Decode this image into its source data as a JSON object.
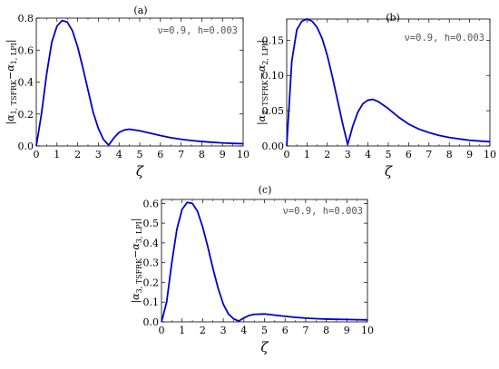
{
  "chart_data": [
    {
      "type": "line",
      "panel_label": "(a)",
      "annotation": "ν=0.9, h=0.003",
      "xlabel": "ζ",
      "ylabel": "|α1, TSFRK−α1, LPI|",
      "ylabel_parts": {
        "open": "|α",
        "sub1": "1, TSFRK",
        "mid": "−α",
        "sub2": "1, LPI",
        "close": "|"
      },
      "xlim": [
        0,
        10
      ],
      "ylim": [
        0,
        0.8
      ],
      "xticks": [
        0,
        1,
        2,
        3,
        4,
        5,
        6,
        7,
        8,
        9,
        10
      ],
      "yticks": [
        0.0,
        0.2,
        0.4,
        0.6,
        0.8
      ],
      "ytick_labels": [
        "0.0",
        "0.2",
        "0.4",
        "0.6",
        "0.8"
      ],
      "series": [
        {
          "color": "#0000cc",
          "x": [
            0,
            0.25,
            0.5,
            0.75,
            1.0,
            1.25,
            1.5,
            1.75,
            2.0,
            2.25,
            2.5,
            2.75,
            3.0,
            3.25,
            3.5,
            3.75,
            4.0,
            4.25,
            4.5,
            5.0,
            5.5,
            6.0,
            6.5,
            7.0,
            7.5,
            8.0,
            8.5,
            9.0,
            9.5,
            10.0
          ],
          "y": [
            0,
            0.2,
            0.45,
            0.65,
            0.75,
            0.785,
            0.775,
            0.72,
            0.62,
            0.49,
            0.35,
            0.21,
            0.11,
            0.04,
            0.005,
            0.05,
            0.085,
            0.1,
            0.105,
            0.095,
            0.08,
            0.065,
            0.052,
            0.042,
            0.034,
            0.028,
            0.023,
            0.019,
            0.016,
            0.014
          ]
        }
      ]
    },
    {
      "type": "line",
      "panel_label": "(b)",
      "annotation": "ν=0.9, h=0.003",
      "xlabel": "ζ",
      "ylabel": "|α2, TSFRK−α2, LPI|",
      "ylabel_parts": {
        "open": "|α",
        "sub1": "2, TSFRK",
        "mid": "−α",
        "sub2": "2, LPI",
        "close": "|"
      },
      "xlim": [
        0,
        10
      ],
      "ylim": [
        0,
        0.18
      ],
      "xticks": [
        0,
        1,
        2,
        3,
        4,
        5,
        6,
        7,
        8,
        9,
        10
      ],
      "yticks": [
        0.0,
        0.05,
        0.1,
        0.15
      ],
      "ytick_labels": [
        "0.00",
        "0.05",
        "0.10",
        "0.15"
      ],
      "series": [
        {
          "color": "#0000cc",
          "x": [
            0,
            0.25,
            0.5,
            0.75,
            1.0,
            1.25,
            1.5,
            1.75,
            2.0,
            2.25,
            2.5,
            2.75,
            3.0,
            3.25,
            3.5,
            3.75,
            4.0,
            4.25,
            4.5,
            5.0,
            5.5,
            6.0,
            6.5,
            7.0,
            7.5,
            8.0,
            8.5,
            9.0,
            9.5,
            10.0
          ],
          "y": [
            0,
            0.12,
            0.165,
            0.177,
            0.18,
            0.177,
            0.168,
            0.152,
            0.128,
            0.098,
            0.065,
            0.032,
            0.002,
            0.028,
            0.048,
            0.06,
            0.065,
            0.066,
            0.063,
            0.053,
            0.041,
            0.031,
            0.024,
            0.019,
            0.015,
            0.012,
            0.01,
            0.008,
            0.007,
            0.006
          ]
        }
      ]
    },
    {
      "type": "line",
      "panel_label": "(c)",
      "annotation": "ν=0.9, h=0.003",
      "xlabel": "ζ",
      "ylabel": "|α3, TSFRK−α3, LPI|",
      "ylabel_parts": {
        "open": "|α",
        "sub1": "3, TSFRK",
        "mid": "−α",
        "sub2": "3, LPI",
        "close": "|"
      },
      "xlim": [
        0,
        10
      ],
      "ylim": [
        0,
        0.62
      ],
      "xticks": [
        0,
        1,
        2,
        3,
        4,
        5,
        6,
        7,
        8,
        9,
        10
      ],
      "yticks": [
        0.0,
        0.1,
        0.2,
        0.3,
        0.4,
        0.5,
        0.6
      ],
      "ytick_labels": [
        "0.0",
        "0.1",
        "0.2",
        "0.3",
        "0.4",
        "0.5",
        "0.6"
      ],
      "series": [
        {
          "color": "#0000cc",
          "x": [
            0,
            0.25,
            0.5,
            0.75,
            1.0,
            1.25,
            1.5,
            1.75,
            2.0,
            2.25,
            2.5,
            2.75,
            3.0,
            3.25,
            3.5,
            3.75,
            4.0,
            4.25,
            4.5,
            5.0,
            5.5,
            6.0,
            6.5,
            7.0,
            7.5,
            8.0,
            8.5,
            9.0,
            9.5,
            10.0
          ],
          "y": [
            0,
            0.1,
            0.3,
            0.47,
            0.57,
            0.605,
            0.6,
            0.56,
            0.48,
            0.38,
            0.27,
            0.17,
            0.09,
            0.04,
            0.015,
            0.004,
            0.02,
            0.032,
            0.038,
            0.04,
            0.034,
            0.028,
            0.023,
            0.019,
            0.016,
            0.014,
            0.013,
            0.012,
            0.011,
            0.01
          ]
        }
      ]
    }
  ]
}
